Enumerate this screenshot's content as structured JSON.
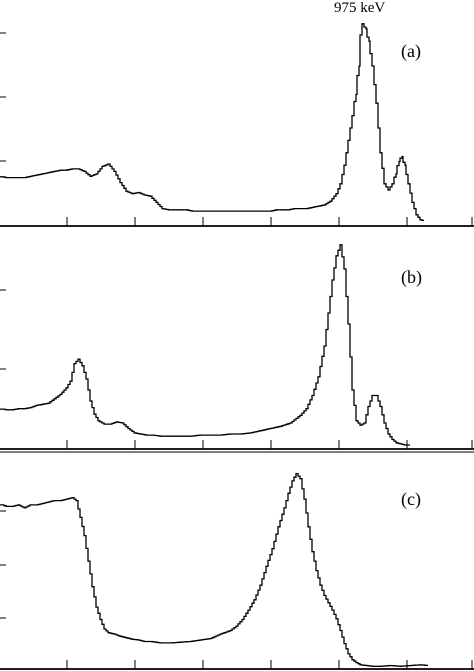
{
  "chart_data": [
    {
      "type": "line",
      "panel_label": "(a)",
      "peak_annotation": "975 keV",
      "x": [
        0,
        6,
        12,
        18,
        24,
        30,
        36,
        42,
        48,
        54,
        60,
        66,
        72,
        78,
        84,
        90,
        96,
        102,
        108,
        114,
        120,
        126,
        132,
        138,
        144,
        150,
        156,
        162,
        168,
        174,
        180,
        186,
        192,
        198,
        204,
        210,
        216,
        222,
        228,
        234,
        240,
        246,
        252,
        258,
        264,
        270,
        276,
        282,
        288,
        294,
        300,
        306,
        312,
        318,
        324,
        330,
        336,
        340,
        344,
        348,
        352,
        355,
        358,
        360,
        362,
        365,
        368,
        372,
        376,
        380,
        384,
        388,
        392,
        395,
        398,
        401,
        404,
        408,
        412,
        416,
        420,
        424
      ],
      "y": [
        0.36,
        0.35,
        0.35,
        0.35,
        0.35,
        0.36,
        0.37,
        0.38,
        0.39,
        0.4,
        0.41,
        0.41,
        0.42,
        0.42,
        0.4,
        0.36,
        0.38,
        0.44,
        0.46,
        0.4,
        0.31,
        0.24,
        0.22,
        0.23,
        0.21,
        0.2,
        0.15,
        0.1,
        0.09,
        0.09,
        0.09,
        0.09,
        0.08,
        0.08,
        0.08,
        0.08,
        0.08,
        0.08,
        0.08,
        0.08,
        0.08,
        0.08,
        0.08,
        0.08,
        0.08,
        0.08,
        0.09,
        0.09,
        0.09,
        0.1,
        0.1,
        0.1,
        0.11,
        0.12,
        0.13,
        0.16,
        0.22,
        0.3,
        0.45,
        0.65,
        0.85,
        1.02,
        1.25,
        1.5,
        1.59,
        1.55,
        1.45,
        1.25,
        0.95,
        0.55,
        0.3,
        0.25,
        0.3,
        0.38,
        0.48,
        0.52,
        0.45,
        0.3,
        0.15,
        0.05,
        0.01,
        0.0
      ]
    },
    {
      "type": "line",
      "panel_label": "(b)",
      "x": [
        0,
        6,
        12,
        18,
        24,
        30,
        36,
        42,
        48,
        54,
        60,
        66,
        70,
        74,
        78,
        82,
        86,
        90,
        94,
        98,
        104,
        110,
        116,
        122,
        128,
        134,
        140,
        146,
        152,
        160,
        170,
        180,
        190,
        200,
        210,
        220,
        230,
        240,
        250,
        260,
        270,
        280,
        290,
        300,
        306,
        312,
        318,
        324,
        328,
        332,
        336,
        340,
        344,
        348,
        352,
        356,
        360,
        364,
        368,
        372,
        376,
        380,
        384,
        388,
        392,
        396,
        400,
        404,
        410
      ],
      "y": [
        0.33,
        0.32,
        0.32,
        0.33,
        0.33,
        0.34,
        0.36,
        0.37,
        0.38,
        0.42,
        0.46,
        0.52,
        0.58,
        0.74,
        0.78,
        0.72,
        0.6,
        0.4,
        0.28,
        0.22,
        0.19,
        0.19,
        0.21,
        0.2,
        0.15,
        0.11,
        0.1,
        0.09,
        0.09,
        0.08,
        0.08,
        0.08,
        0.08,
        0.09,
        0.09,
        0.09,
        0.1,
        0.1,
        0.11,
        0.13,
        0.15,
        0.17,
        0.2,
        0.27,
        0.33,
        0.45,
        0.62,
        0.9,
        1.2,
        1.5,
        1.72,
        1.82,
        1.6,
        1.1,
        0.5,
        0.22,
        0.18,
        0.2,
        0.35,
        0.45,
        0.45,
        0.35,
        0.2,
        0.1,
        0.05,
        0.02,
        0.01,
        0.0,
        0.0
      ]
    },
    {
      "type": "line",
      "panel_label": "(c)",
      "x": [
        0,
        6,
        12,
        18,
        24,
        30,
        36,
        42,
        48,
        54,
        60,
        66,
        72,
        76,
        80,
        84,
        88,
        92,
        96,
        100,
        104,
        108,
        114,
        120,
        126,
        132,
        138,
        144,
        150,
        160,
        170,
        180,
        190,
        200,
        210,
        220,
        230,
        236,
        242,
        248,
        254,
        260,
        266,
        272,
        278,
        284,
        288,
        292,
        296,
        300,
        304,
        308,
        312,
        316,
        320,
        324,
        328,
        332,
        336,
        340,
        344,
        348,
        352,
        356,
        360,
        366,
        372,
        380,
        390,
        400,
        410,
        420,
        428
      ],
      "y": [
        2.23,
        2.2,
        2.2,
        2.22,
        2.18,
        2.22,
        2.22,
        2.24,
        2.26,
        2.28,
        2.28,
        2.3,
        2.32,
        2.28,
        2.05,
        1.8,
        1.45,
        1.1,
        0.82,
        0.65,
        0.52,
        0.47,
        0.45,
        0.42,
        0.4,
        0.38,
        0.37,
        0.35,
        0.35,
        0.33,
        0.33,
        0.34,
        0.35,
        0.37,
        0.39,
        0.45,
        0.5,
        0.56,
        0.65,
        0.78,
        0.92,
        1.12,
        1.38,
        1.62,
        1.92,
        2.18,
        2.38,
        2.55,
        2.65,
        2.58,
        2.3,
        1.92,
        1.58,
        1.32,
        1.12,
        0.98,
        0.88,
        0.78,
        0.66,
        0.5,
        0.32,
        0.18,
        0.1,
        0.06,
        0.03,
        0.02,
        0.01,
        0.01,
        0.02,
        0.01,
        0.02,
        0.03,
        0.02
      ]
    }
  ]
}
